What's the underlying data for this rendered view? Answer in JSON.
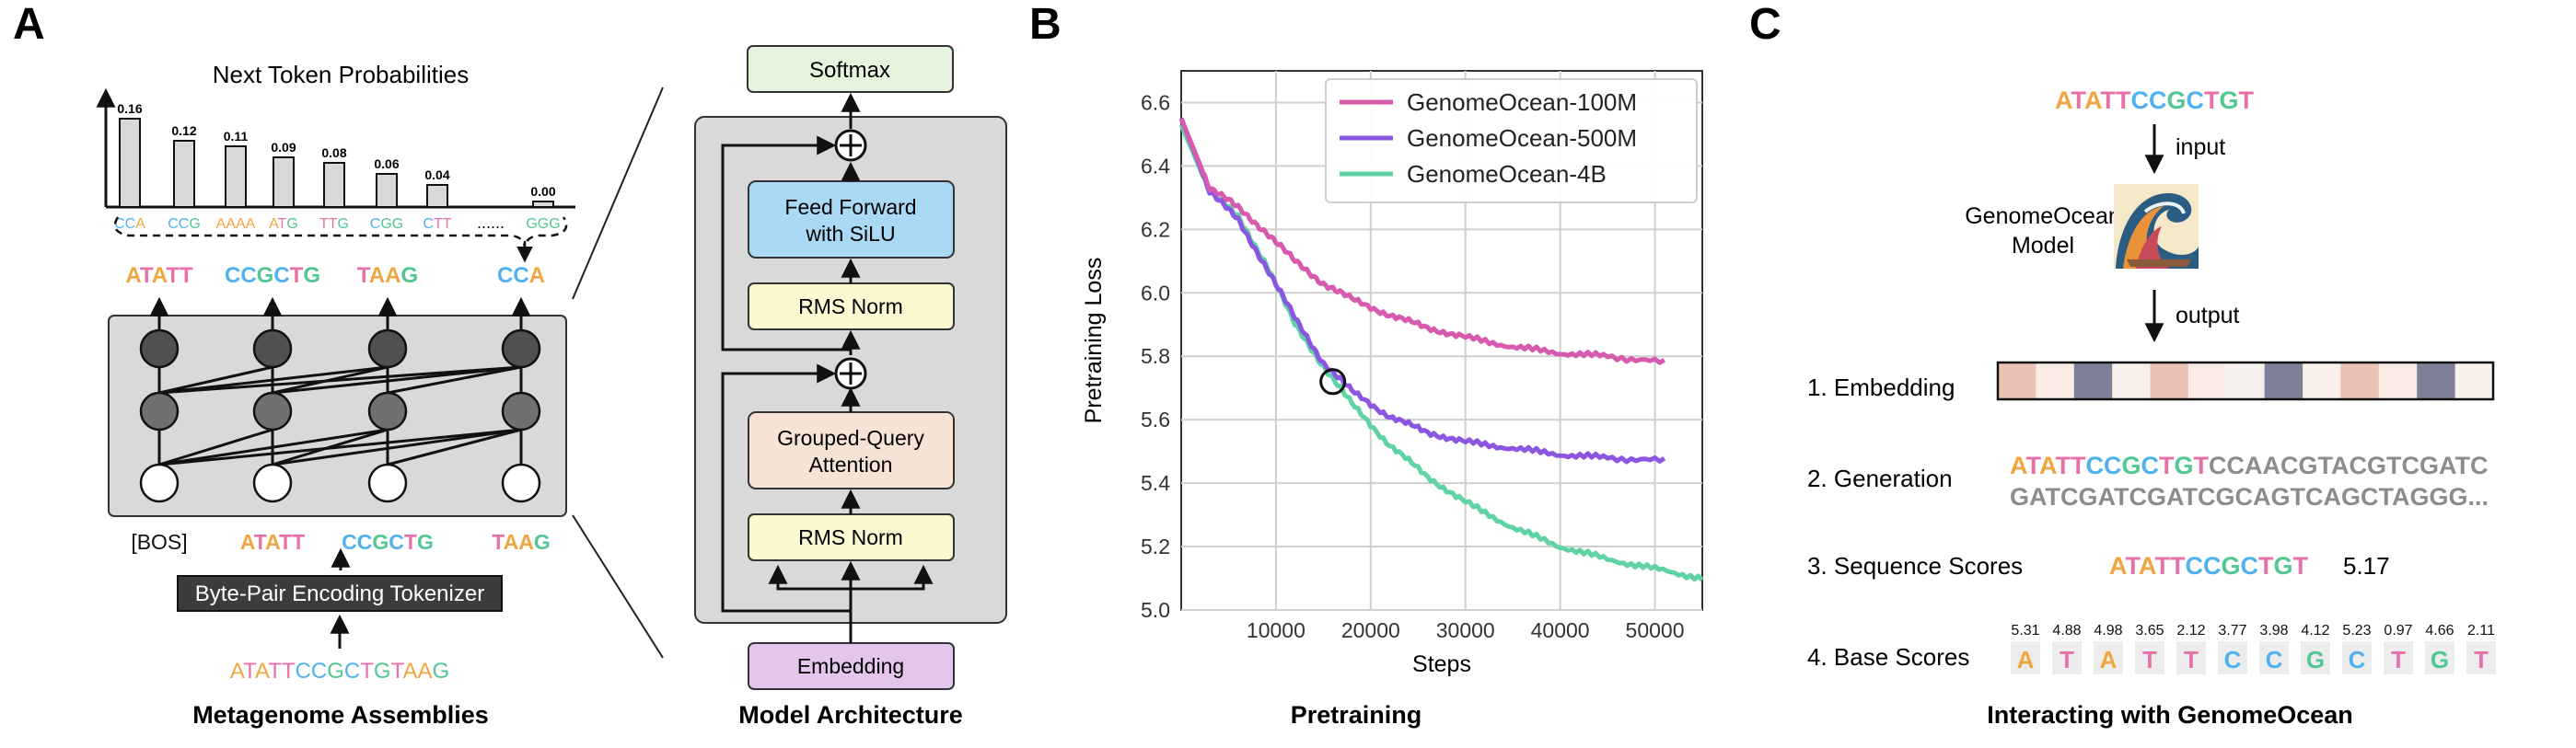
{
  "colors": {
    "A": "#F0A640",
    "T": "#E770A8",
    "C": "#4FB2EE",
    "G": "#52C794"
  },
  "panelA": {
    "label": "A",
    "probs": {
      "title": "Next Token Probabilities",
      "values": [
        0.16,
        0.12,
        0.11,
        0.09,
        0.08,
        0.06,
        0.04,
        0.0
      ],
      "value_labels": [
        "0.16",
        "0.12",
        "0.11",
        "0.09",
        "0.08",
        "0.06",
        "0.04",
        "0.00"
      ],
      "tokens": [
        "CCA",
        "CCG",
        "AAAA",
        "ATG",
        "TTG",
        "CGG",
        "CTT",
        "GGG"
      ],
      "ellipsis": "......"
    },
    "output_tokens": [
      "ATATT",
      "CCGCTG",
      "TAAG",
      "CCA"
    ],
    "input_tokens": [
      "[BOS]",
      "ATATT",
      "CCGCTG",
      "TAAG"
    ],
    "tokenizer": "Byte-Pair Encoding Tokenizer",
    "sequence": "ATATTCCGCTGTAAG",
    "caption": "Metagenome Assemblies"
  },
  "architecture": {
    "softmax": "Softmax",
    "ffn": [
      "Feed Forward",
      "with SiLU"
    ],
    "norm_top": "RMS Norm",
    "attention": [
      "Grouped-Query",
      "Attention"
    ],
    "norm_bottom": "RMS Norm",
    "embedding": "Embedding",
    "caption": "Model Architecture"
  },
  "panelB": {
    "label": "B",
    "caption": "Pretraining"
  },
  "chart_data": {
    "type": "line",
    "xlabel": "Steps",
    "ylabel": "Pretraining Loss",
    "xlim": [
      0,
      55000
    ],
    "ylim": [
      5.0,
      6.7
    ],
    "xticks": [
      10000,
      20000,
      30000,
      40000,
      50000
    ],
    "xtick_labels": [
      "10000",
      "20000",
      "30000",
      "40000",
      "50000"
    ],
    "yticks": [
      5.0,
      5.2,
      5.4,
      5.6,
      5.8,
      6.0,
      6.2,
      6.4,
      6.6
    ],
    "ytick_labels": [
      "5.0",
      "5.2",
      "5.4",
      "5.6",
      "5.8",
      "6.0",
      "6.2",
      "6.4",
      "6.6"
    ],
    "grid": true,
    "legend": "top-right",
    "annotation": "circle at intersection near step 16000, loss 5.72",
    "series": [
      {
        "name": "GenomeOcean-100M",
        "color": "#D85AAE",
        "x": [
          0,
          3000,
          6000,
          9000,
          12000,
          15000,
          18000,
          22000,
          26000,
          30000,
          35000,
          40000,
          45000,
          51000
        ],
        "y": [
          6.55,
          6.33,
          6.27,
          6.19,
          6.1,
          6.03,
          5.98,
          5.93,
          5.89,
          5.86,
          5.83,
          5.81,
          5.8,
          5.78
        ]
      },
      {
        "name": "GenomeOcean-500M",
        "color": "#8A56E2",
        "x": [
          0,
          3000,
          6000,
          9000,
          12000,
          15000,
          18000,
          22000,
          26000,
          30000,
          35000,
          40000,
          45000,
          51000
        ],
        "y": [
          6.55,
          6.32,
          6.23,
          6.08,
          5.92,
          5.78,
          5.69,
          5.61,
          5.56,
          5.53,
          5.51,
          5.49,
          5.48,
          5.47
        ]
      },
      {
        "name": "GenomeOcean-4B",
        "color": "#5FD3A4",
        "x": [
          0,
          3000,
          6000,
          9000,
          12000,
          15000,
          18000,
          22000,
          26000,
          30000,
          35000,
          40000,
          45000,
          50000,
          55000
        ],
        "y": [
          6.53,
          6.32,
          6.24,
          6.09,
          5.9,
          5.77,
          5.65,
          5.52,
          5.42,
          5.34,
          5.26,
          5.2,
          5.16,
          5.13,
          5.1
        ]
      }
    ]
  },
  "panelC": {
    "label": "C",
    "input_seq": "ATATTCCGCTGT",
    "input_label": "input",
    "model_label": [
      "GenomeOcean",
      "Model"
    ],
    "output_label": "output",
    "embedding_label": "1. Embedding",
    "embedding_colors": [
      "#EBC3B4",
      "#FAEDE6",
      "#7E8098",
      "#F9F0EB",
      "#EBC3B4",
      "#FAEDE6",
      "#F5F0EE",
      "#7E8098",
      "#F9F0EB",
      "#EBC3B4",
      "#FAEDE6",
      "#7E8098",
      "#F9F0EB"
    ],
    "generation_label": "2. Generation",
    "generation_prefix": "ATATTCCGCTGT",
    "generation_rest_line1": "CCAACGTACGTCGATC",
    "generation_line2": "GATCGATCGATCGCAGTCAGCTAGGG...",
    "seq_scores_label": "3. Sequence  Scores",
    "seq_scores_seq": "ATATTCCGCTGT",
    "seq_score_value": "5.17",
    "base_scores_label": "4. Base Scores",
    "base_scores": [
      "5.31",
      "4.88",
      "4.98",
      "3.65",
      "2.12",
      "3.77",
      "3.98",
      "4.12",
      "5.23",
      "0.97",
      "4.66",
      "2.11"
    ],
    "base_letters": [
      "A",
      "T",
      "A",
      "T",
      "T",
      "C",
      "C",
      "G",
      "C",
      "T",
      "G",
      "T"
    ],
    "caption": "Interacting with GenomeOcean"
  }
}
